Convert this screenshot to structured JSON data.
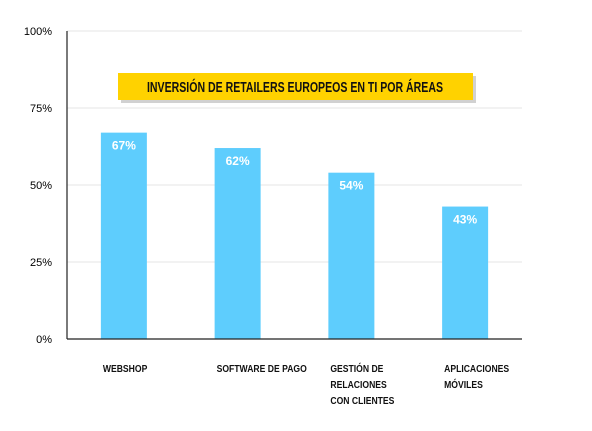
{
  "chart_data": {
    "type": "bar",
    "title": "INVERSIÓN DE RETAILERS EUROPEOS EN TI POR ÁREAS",
    "categories": [
      [
        "WEBSHOP"
      ],
      [
        "SOFTWARE DE PAGO"
      ],
      [
        "GESTIÓN DE",
        "RELACIONES",
        "CON CLIENTES"
      ],
      [
        "APLICACIONES",
        "MÓVILES"
      ]
    ],
    "values": [
      67,
      62,
      54,
      43
    ],
    "data_labels": [
      "67%",
      "62%",
      "54%",
      "43%"
    ],
    "y_ticks": [
      "0%",
      "25%",
      "50%",
      "75%",
      "100%"
    ],
    "ylim": [
      0,
      100
    ],
    "xlabel": "",
    "ylabel": "",
    "grid": true,
    "legend": "none",
    "colors": {
      "bar": "#5ecdfd",
      "title_bg": "#ffd200",
      "grid": "#e6e6e6",
      "axis": "#222222"
    }
  }
}
